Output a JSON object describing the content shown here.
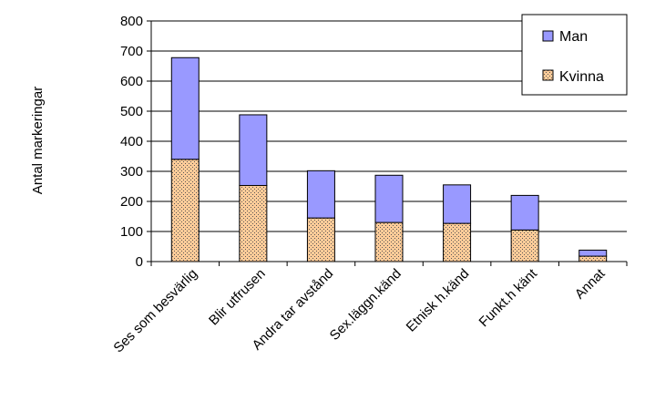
{
  "chart_data": {
    "type": "bar",
    "stacked": true,
    "title": "",
    "xlabel": "",
    "ylabel": "Antal markeringar",
    "ylim": [
      0,
      800
    ],
    "yticks": [
      0,
      100,
      200,
      300,
      400,
      500,
      600,
      700,
      800
    ],
    "grid": true,
    "legend_position": "top-right",
    "categories": [
      "Ses som besvärlig",
      "Blir utfrusen",
      "Andra tar avstånd",
      "Sex.läggn.känd",
      "Etnisk h.känd",
      "Funkt.h känt",
      "Annat"
    ],
    "series": [
      {
        "name": "Kvinna",
        "color": "#FFCC99",
        "values": [
          340,
          253,
          145,
          130,
          127,
          105,
          18
        ]
      },
      {
        "name": "Man",
        "color": "#9999FF",
        "values": [
          338,
          235,
          157,
          157,
          128,
          115,
          20
        ]
      }
    ],
    "legend_order": [
      "Man",
      "Kvinna"
    ]
  }
}
